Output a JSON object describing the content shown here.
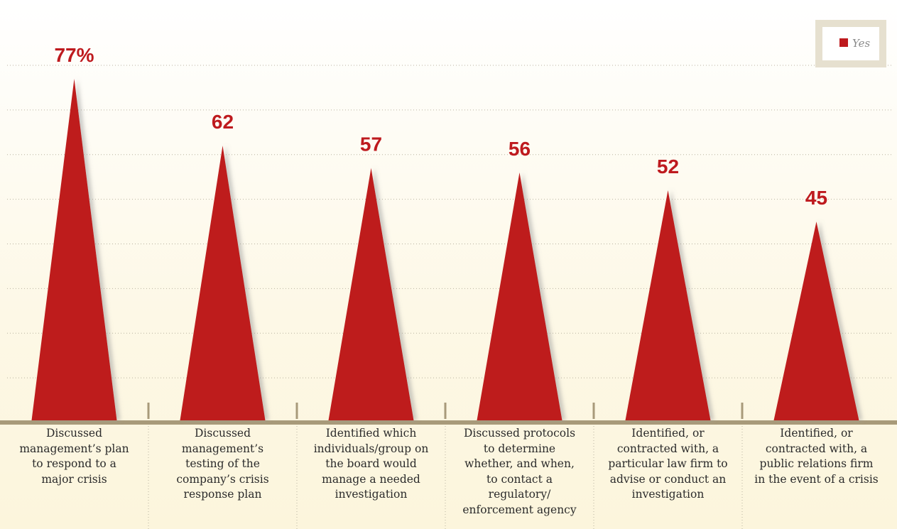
{
  "chart_data": {
    "type": "peak",
    "categories": [
      "Discussed\nmanagement’s plan\nto respond to a\nmajor crisis",
      "Discussed\nmanagement’s\ntesting of the\ncompany’s crisis\nresponse plan",
      "Identified which\nindividuals/group on\nthe board would\nmanage a needed\ninvestigation",
      "Discussed protocols\nto determine\nwhether, and when,\nto contact a\nregulatory/\nenforcement agency",
      "Identified, or\ncontracted with, a\nparticular law firm to\nadvise or conduct an\ninvestigation",
      "Identified, or\ncontracted with, a\npublic relations firm\nin the event of a crisis"
    ],
    "series": [
      {
        "name": "Yes",
        "color": "#be1a1e",
        "values": [
          77,
          62,
          57,
          56,
          52,
          45
        ],
        "value_labels": [
          "77%",
          "62",
          "57",
          "56",
          "52",
          "45"
        ]
      }
    ],
    "ylim": [
      0,
      80
    ],
    "yticks": [
      10,
      20,
      30,
      40,
      50,
      60,
      70,
      80
    ],
    "grid": true,
    "legend": "upper right"
  }
}
